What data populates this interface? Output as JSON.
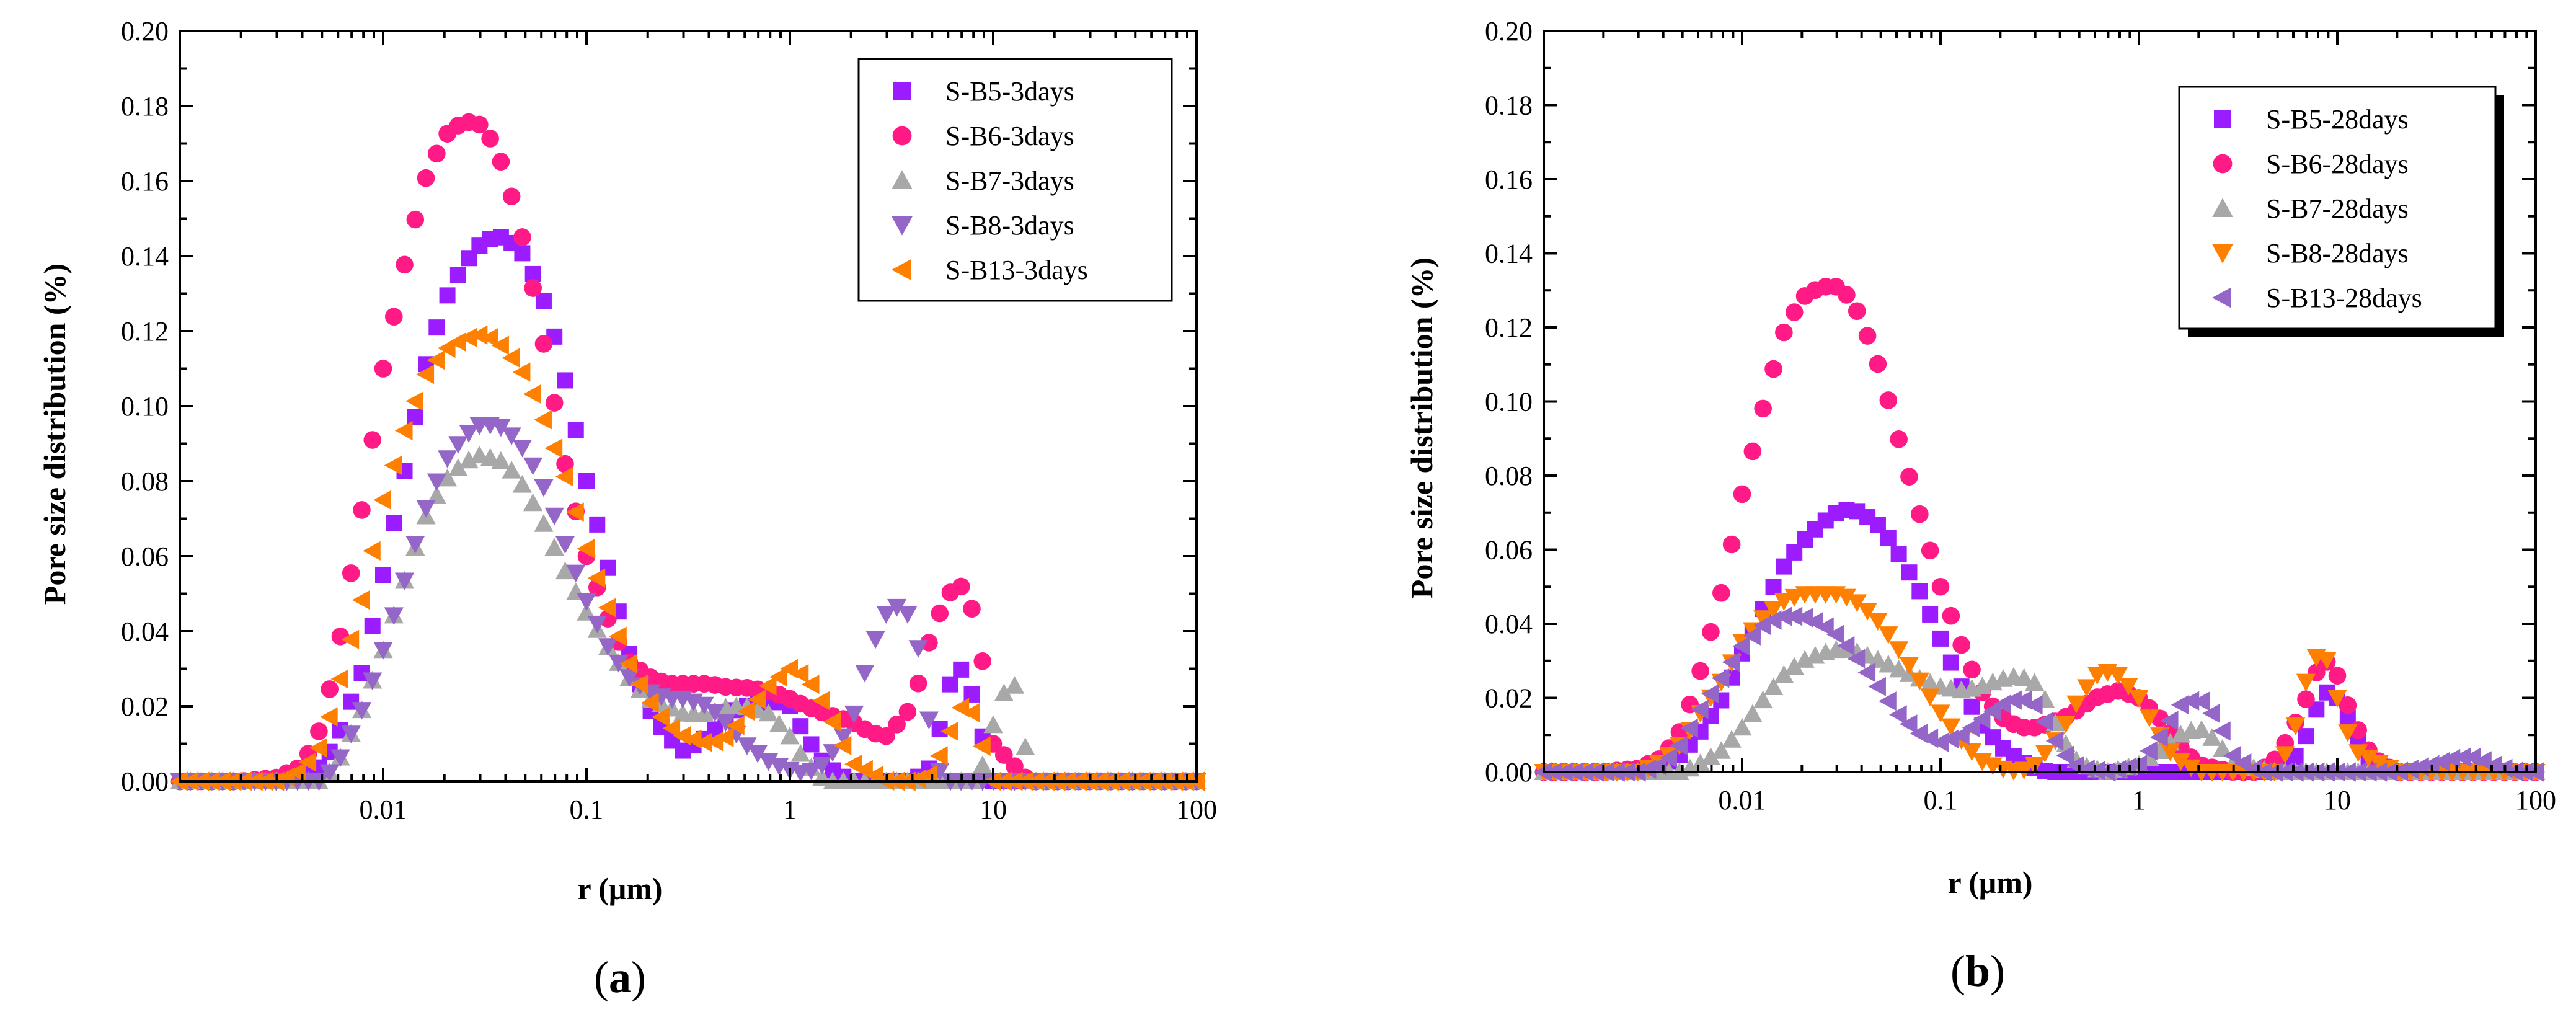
{
  "colors": {
    "B5": "#9b1dff",
    "B6": "#ff1a86",
    "B7": "#a8a8a8",
    "B8a": "#9466c8",
    "B8b": "#ff8000",
    "B13a": "#ff8000",
    "B13b": "#9466c8"
  },
  "chart_data": [
    {
      "type": "scatter",
      "panel": "a",
      "panel_label": {
        "open": "(",
        "letter": "a",
        "close": ")"
      },
      "xlabel": "r (μm)",
      "ylabel": "Pore size distribution (%)",
      "xscale": "log",
      "xlim": [
        0.001,
        100
      ],
      "ylim": [
        0,
        0.2
      ],
      "xticks": [
        0.01,
        0.1,
        1,
        10,
        100
      ],
      "xtick_labels": [
        "0.01",
        "0.1",
        "1",
        "10",
        "100"
      ],
      "yticks": [
        0,
        0.02,
        0.04,
        0.06,
        0.08,
        0.1,
        0.12,
        0.14,
        0.16,
        0.18,
        0.2
      ],
      "ytick_labels": [
        "0.00",
        "0.02",
        "0.04",
        "0.06",
        "0.08",
        "0.10",
        "0.12",
        "0.14",
        "0.16",
        "0.18",
        "0.20"
      ],
      "legend": "top-right",
      "series": [
        {
          "name": "S-B5-3days",
          "marker": "square",
          "color": "#9b1dff",
          "x": [
            0.001,
            0.002,
            0.003,
            0.004,
            0.005,
            0.006,
            0.008,
            0.01,
            0.013,
            0.016,
            0.02,
            0.025,
            0.03,
            0.035,
            0.04,
            0.05,
            0.06,
            0.07,
            0.08,
            0.1,
            0.13,
            0.16,
            0.2,
            0.25,
            0.3,
            0.4,
            0.5,
            0.6,
            0.8,
            1.0,
            1.2,
            1.5,
            2,
            3,
            4,
            5,
            6,
            7,
            8,
            10,
            15,
            20,
            50,
            100
          ],
          "values": [
            0,
            0,
            0,
            0.002,
            0.004,
            0.012,
            0.03,
            0.055,
            0.085,
            0.11,
            0.128,
            0.138,
            0.143,
            0.145,
            0.145,
            0.14,
            0.13,
            0.118,
            0.105,
            0.08,
            0.055,
            0.035,
            0.02,
            0.012,
            0.008,
            0.012,
            0.018,
            0.02,
            0.022,
            0.02,
            0.012,
            0.004,
            0,
            0,
            0,
            0.004,
            0.025,
            0.03,
            0.022,
            0,
            0,
            0,
            0,
            0
          ]
        },
        {
          "name": "S-B6-3days",
          "marker": "circle",
          "color": "#ff1a86",
          "x": [
            0.001,
            0.002,
            0.003,
            0.004,
            0.005,
            0.006,
            0.008,
            0.01,
            0.013,
            0.016,
            0.02,
            0.025,
            0.03,
            0.035,
            0.04,
            0.05,
            0.06,
            0.07,
            0.08,
            0.1,
            0.13,
            0.16,
            0.2,
            0.25,
            0.3,
            0.4,
            0.5,
            0.6,
            0.8,
            1.0,
            1.2,
            1.5,
            2,
            2.5,
            3,
            4,
            5,
            6,
            7,
            8,
            9,
            10,
            15,
            20,
            50,
            100
          ],
          "values": [
            0,
            0,
            0.001,
            0.004,
            0.015,
            0.035,
            0.075,
            0.11,
            0.14,
            0.16,
            0.172,
            0.176,
            0.175,
            0.17,
            0.162,
            0.142,
            0.12,
            0.1,
            0.082,
            0.06,
            0.042,
            0.032,
            0.028,
            0.026,
            0.026,
            0.026,
            0.025,
            0.025,
            0.024,
            0.022,
            0.02,
            0.018,
            0.016,
            0.013,
            0.012,
            0.02,
            0.04,
            0.05,
            0.052,
            0.045,
            0.03,
            0.01,
            0,
            0,
            0,
            0
          ]
        },
        {
          "name": "S-B7-3days",
          "marker": "triangle-up",
          "color": "#a8a8a8",
          "x": [
            0.001,
            0.003,
            0.005,
            0.006,
            0.008,
            0.01,
            0.013,
            0.016,
            0.02,
            0.025,
            0.03,
            0.035,
            0.04,
            0.05,
            0.06,
            0.08,
            0.1,
            0.13,
            0.16,
            0.2,
            0.25,
            0.3,
            0.4,
            0.5,
            0.6,
            0.8,
            1.0,
            1.2,
            1.5,
            2,
            5,
            8,
            9,
            10,
            11,
            12,
            13,
            14,
            15,
            20,
            50,
            100
          ],
          "values": [
            0,
            0,
            0,
            0.005,
            0.02,
            0.035,
            0.055,
            0.07,
            0.08,
            0.085,
            0.087,
            0.086,
            0.085,
            0.078,
            0.07,
            0.055,
            0.045,
            0.035,
            0.028,
            0.022,
            0.02,
            0.018,
            0.018,
            0.02,
            0.02,
            0.018,
            0.012,
            0.005,
            0,
            0,
            0,
            0,
            0.005,
            0.015,
            0.022,
            0.027,
            0.025,
            0.015,
            0,
            0,
            0,
            0
          ]
        },
        {
          "name": "S-B8-3days",
          "marker": "triangle-down",
          "color": "#9466c8",
          "x": [
            0.001,
            0.003,
            0.005,
            0.006,
            0.008,
            0.01,
            0.013,
            0.016,
            0.02,
            0.025,
            0.03,
            0.035,
            0.04,
            0.05,
            0.06,
            0.08,
            0.1,
            0.13,
            0.16,
            0.2,
            0.25,
            0.3,
            0.4,
            0.5,
            0.6,
            0.8,
            1.0,
            1.2,
            1.5,
            2,
            2.5,
            3,
            3.5,
            4,
            4.5,
            5,
            5.5,
            6,
            10,
            20,
            50,
            100
          ],
          "values": [
            0,
            0,
            0,
            0.005,
            0.02,
            0.035,
            0.055,
            0.072,
            0.085,
            0.092,
            0.095,
            0.095,
            0.094,
            0.088,
            0.08,
            0.062,
            0.048,
            0.035,
            0.028,
            0.024,
            0.022,
            0.022,
            0.02,
            0.015,
            0.01,
            0.005,
            0.003,
            0.002,
            0.005,
            0.015,
            0.035,
            0.045,
            0.047,
            0.043,
            0.03,
            0.01,
            0.002,
            0,
            0,
            0,
            0,
            0
          ]
        },
        {
          "name": "S-B13-3days",
          "marker": "triangle-left",
          "color": "#ff8000",
          "x": [
            0.001,
            0.002,
            0.003,
            0.004,
            0.005,
            0.006,
            0.008,
            0.01,
            0.013,
            0.016,
            0.02,
            0.025,
            0.03,
            0.035,
            0.04,
            0.05,
            0.06,
            0.08,
            0.1,
            0.13,
            0.16,
            0.2,
            0.25,
            0.3,
            0.4,
            0.5,
            0.6,
            0.7,
            0.8,
            1.0,
            1.2,
            1.5,
            2,
            3,
            4,
            5,
            6,
            7,
            8,
            9,
            10,
            20,
            50,
            100
          ],
          "values": [
            0,
            0,
            0,
            0.003,
            0.01,
            0.025,
            0.05,
            0.075,
            0.095,
            0.108,
            0.115,
            0.118,
            0.119,
            0.118,
            0.115,
            0.108,
            0.098,
            0.08,
            0.062,
            0.045,
            0.032,
            0.022,
            0.015,
            0.012,
            0.01,
            0.012,
            0.018,
            0.022,
            0.026,
            0.03,
            0.028,
            0.02,
            0.005,
            0,
            0,
            0.002,
            0.012,
            0.02,
            0.018,
            0.008,
            0,
            0,
            0,
            0
          ]
        }
      ]
    },
    {
      "type": "scatter",
      "panel": "b",
      "panel_label": {
        "open": "(",
        "letter": "b",
        "close": ")"
      },
      "xlabel": "r (μm)",
      "ylabel": "Pore size distribution (%)",
      "xscale": "log",
      "xlim": [
        0.001,
        100
      ],
      "ylim": [
        0,
        0.2
      ],
      "xticks": [
        0.01,
        0.1,
        1,
        10,
        100
      ],
      "xtick_labels": [
        "0.01",
        "0.1",
        "1",
        "10",
        "100"
      ],
      "yticks": [
        0,
        0.02,
        0.04,
        0.06,
        0.08,
        0.1,
        0.12,
        0.14,
        0.16,
        0.18,
        0.2
      ],
      "ytick_labels": [
        "0.00",
        "0.02",
        "0.04",
        "0.06",
        "0.08",
        "0.10",
        "0.12",
        "0.14",
        "0.16",
        "0.18",
        "0.20"
      ],
      "legend": "top-right",
      "series": [
        {
          "name": "S-B5-28days",
          "marker": "square",
          "color": "#9b1dff",
          "x": [
            0.001,
            0.003,
            0.004,
            0.005,
            0.006,
            0.008,
            0.01,
            0.013,
            0.016,
            0.02,
            0.025,
            0.03,
            0.035,
            0.04,
            0.05,
            0.06,
            0.08,
            0.1,
            0.13,
            0.16,
            0.2,
            0.25,
            0.3,
            0.35,
            0.4,
            1,
            3,
            5,
            6,
            7,
            8,
            9,
            10,
            12,
            14,
            16,
            20,
            50,
            100
          ],
          "values": [
            0,
            0,
            0.002,
            0.005,
            0.01,
            0.02,
            0.032,
            0.045,
            0.055,
            0.062,
            0.067,
            0.07,
            0.071,
            0.07,
            0.066,
            0.06,
            0.048,
            0.036,
            0.022,
            0.013,
            0.007,
            0.003,
            0.001,
            0,
            0,
            0,
            0,
            0,
            0.003,
            0.01,
            0.018,
            0.022,
            0.02,
            0.012,
            0.004,
            0,
            0,
            0,
            0
          ]
        },
        {
          "name": "S-B6-28days",
          "marker": "circle",
          "color": "#ff1a86",
          "x": [
            0.001,
            0.002,
            0.003,
            0.004,
            0.005,
            0.006,
            0.008,
            0.01,
            0.013,
            0.016,
            0.02,
            0.025,
            0.03,
            0.035,
            0.04,
            0.05,
            0.06,
            0.08,
            0.1,
            0.13,
            0.16,
            0.2,
            0.25,
            0.3,
            0.4,
            0.5,
            0.6,
            0.8,
            1.0,
            1.3,
            1.6,
            2,
            3,
            4,
            5,
            6,
            7,
            8,
            9,
            10,
            12,
            15,
            20,
            50,
            100
          ],
          "values": [
            0,
            0,
            0.001,
            0.004,
            0.012,
            0.025,
            0.05,
            0.075,
            0.1,
            0.118,
            0.128,
            0.131,
            0.131,
            0.128,
            0.122,
            0.108,
            0.092,
            0.068,
            0.05,
            0.033,
            0.022,
            0.015,
            0.012,
            0.012,
            0.014,
            0.017,
            0.02,
            0.022,
            0.02,
            0.014,
            0.007,
            0.002,
            0,
            0,
            0.004,
            0.012,
            0.02,
            0.028,
            0.03,
            0.026,
            0.014,
            0.004,
            0,
            0,
            0
          ]
        },
        {
          "name": "S-B7-28days",
          "marker": "triangle-up",
          "color": "#a8a8a8",
          "x": [
            0.001,
            0.003,
            0.005,
            0.006,
            0.008,
            0.01,
            0.013,
            0.016,
            0.02,
            0.025,
            0.03,
            0.035,
            0.04,
            0.05,
            0.06,
            0.08,
            0.1,
            0.13,
            0.16,
            0.2,
            0.25,
            0.3,
            0.35,
            0.4,
            0.5,
            0.7,
            1,
            1.3,
            1.6,
            2,
            2.5,
            3,
            5,
            10,
            20,
            50,
            100
          ],
          "values": [
            0,
            0,
            0,
            0.002,
            0.006,
            0.012,
            0.02,
            0.026,
            0.03,
            0.032,
            0.033,
            0.033,
            0.032,
            0.03,
            0.028,
            0.025,
            0.023,
            0.022,
            0.023,
            0.025,
            0.026,
            0.024,
            0.018,
            0.01,
            0.002,
            0,
            0.002,
            0.006,
            0.01,
            0.012,
            0.008,
            0.002,
            0,
            0,
            0,
            0,
            0
          ]
        },
        {
          "name": "S-B8-28days",
          "marker": "triangle-down",
          "color": "#ff8000",
          "x": [
            0.001,
            0.003,
            0.004,
            0.005,
            0.006,
            0.008,
            0.01,
            0.013,
            0.016,
            0.02,
            0.025,
            0.03,
            0.035,
            0.04,
            0.05,
            0.06,
            0.08,
            0.1,
            0.13,
            0.16,
            0.2,
            0.25,
            0.3,
            0.4,
            0.5,
            0.6,
            0.7,
            0.8,
            1.0,
            1.2,
            1.5,
            2,
            5,
            6,
            7,
            8,
            9,
            10,
            12,
            20,
            40,
            50,
            100
          ],
          "values": [
            0,
            0,
            0.003,
            0.008,
            0.015,
            0.025,
            0.035,
            0.042,
            0.046,
            0.048,
            0.048,
            0.048,
            0.047,
            0.045,
            0.04,
            0.034,
            0.024,
            0.016,
            0.008,
            0.003,
            0.001,
            0,
            0.002,
            0.01,
            0.02,
            0.026,
            0.027,
            0.026,
            0.02,
            0.012,
            0.004,
            0,
            0,
            0.01,
            0.025,
            0.032,
            0.03,
            0.02,
            0.006,
            0,
            0,
            0,
            0
          ]
        },
        {
          "name": "S-B13-28days",
          "marker": "triangle-left",
          "color": "#9466c8",
          "x": [
            0.001,
            0.002,
            0.003,
            0.004,
            0.005,
            0.006,
            0.008,
            0.01,
            0.013,
            0.016,
            0.02,
            0.025,
            0.03,
            0.035,
            0.04,
            0.05,
            0.06,
            0.08,
            0.1,
            0.13,
            0.16,
            0.2,
            0.25,
            0.3,
            0.35,
            0.4,
            0.5,
            0.7,
            1,
            1.3,
            1.6,
            2,
            2.5,
            3,
            4,
            10,
            20,
            30,
            40,
            50,
            60,
            80,
            100
          ],
          "values": [
            0,
            0,
            0,
            0.002,
            0.008,
            0.016,
            0.026,
            0.034,
            0.04,
            0.042,
            0.042,
            0.04,
            0.037,
            0.033,
            0.029,
            0.022,
            0.016,
            0.01,
            0.008,
            0.01,
            0.014,
            0.018,
            0.02,
            0.018,
            0.012,
            0.006,
            0.001,
            0,
            0.002,
            0.01,
            0.018,
            0.02,
            0.014,
            0.004,
            0,
            0,
            0,
            0.002,
            0.004,
            0.004,
            0.002,
            0,
            0
          ]
        }
      ]
    }
  ]
}
